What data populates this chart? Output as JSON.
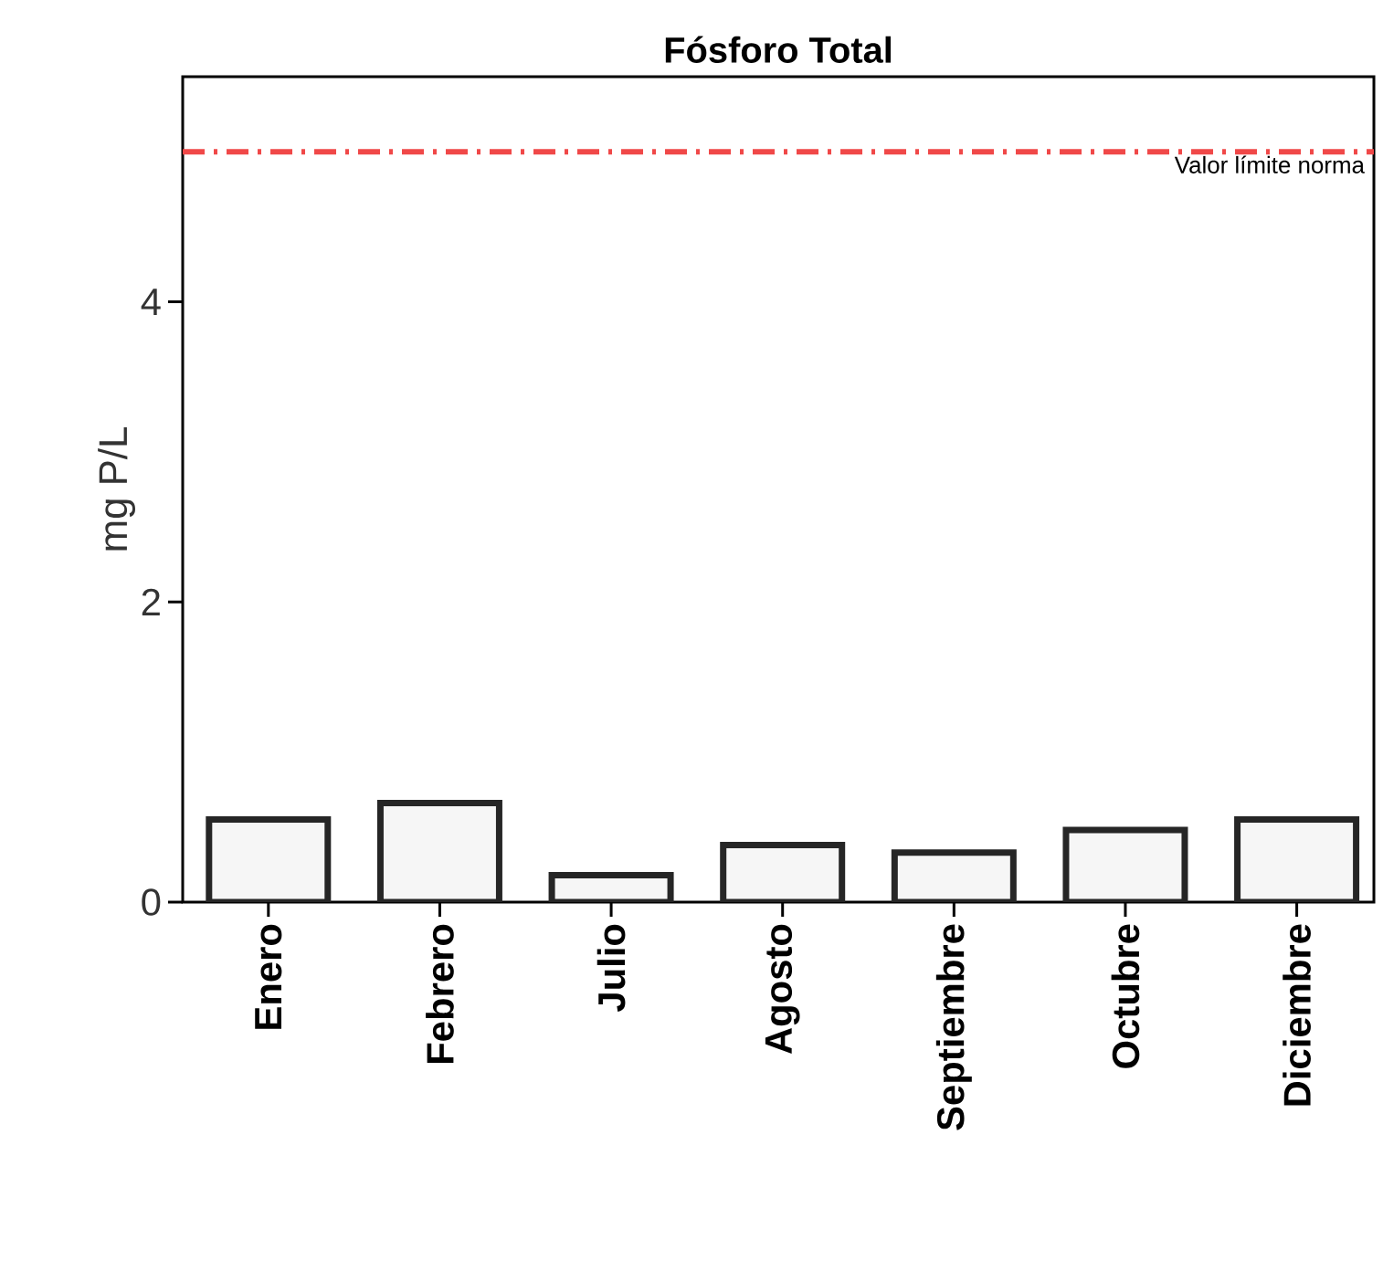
{
  "chart_data": {
    "type": "bar",
    "title": "Fósforo Total",
    "ylabel": "mg P/L",
    "categories": [
      "Enero",
      "Febrero",
      "Julio",
      "Agosto",
      "Septiembre",
      "Octubre",
      "Diciembre"
    ],
    "values": [
      0.55,
      0.66,
      0.18,
      0.38,
      0.33,
      0.48,
      0.55
    ],
    "color": "#f6f6f6",
    "ylim": [
      0,
      5.5
    ],
    "yticks": [
      0,
      2,
      4
    ],
    "ref_lines": [
      {
        "axis": "y",
        "value": 5,
        "label": "Valor límite norma",
        "color": "#f04848",
        "line_style": "dashdotted"
      }
    ]
  }
}
